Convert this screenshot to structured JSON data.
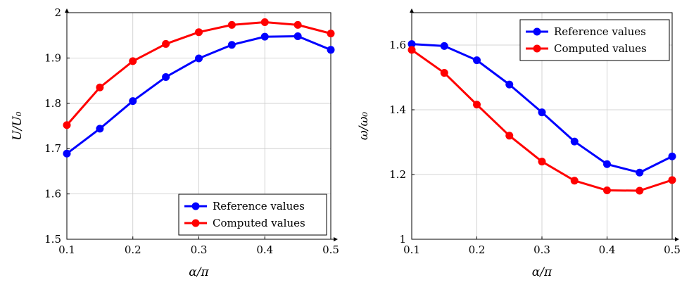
{
  "chart_data": [
    {
      "type": "line",
      "x": [
        0.1,
        0.15,
        0.2,
        0.25,
        0.3,
        0.35,
        0.4,
        0.45,
        0.5
      ],
      "series": [
        {
          "name": "Reference values",
          "color": "#0000ff",
          "values": [
            1.689,
            1.744,
            1.805,
            1.858,
            1.899,
            1.929,
            1.947,
            1.948,
            1.918
          ]
        },
        {
          "name": "Computed values",
          "color": "#ff0000",
          "values": [
            1.752,
            1.835,
            1.893,
            1.931,
            1.957,
            1.973,
            1.979,
            1.973,
            1.954
          ]
        }
      ],
      "xlabel": "α/π",
      "ylabel": "U/U₀",
      "xlim": [
        0.1,
        0.5
      ],
      "ylim": [
        1.5,
        2.0
      ],
      "xticks": [
        "0.1",
        "0.2",
        "0.3",
        "0.4",
        "0.5"
      ],
      "yticks": [
        "1.5",
        "1.6",
        "1.7",
        "1.8",
        "1.9",
        "2"
      ],
      "legend_position": "bottom-right",
      "grid": true
    },
    {
      "type": "line",
      "x": [
        0.1,
        0.15,
        0.2,
        0.25,
        0.3,
        0.35,
        0.4,
        0.45,
        0.5
      ],
      "series": [
        {
          "name": "Reference values",
          "color": "#0000ff",
          "values": [
            1.603,
            1.597,
            1.553,
            1.478,
            1.392,
            1.302,
            1.232,
            1.206,
            1.256
          ]
        },
        {
          "name": "Computed values",
          "color": "#ff0000",
          "values": [
            1.585,
            1.514,
            1.416,
            1.32,
            1.24,
            1.181,
            1.151,
            1.15,
            1.183
          ]
        }
      ],
      "xlabel": "α/π",
      "ylabel": "ω/ω₀",
      "xlim": [
        0.1,
        0.5
      ],
      "ylim": [
        1.0,
        1.7
      ],
      "xticks": [
        "0.1",
        "0.2",
        "0.3",
        "0.4",
        "0.5"
      ],
      "yticks": [
        "1",
        "1.2",
        "1.4",
        "1.6"
      ],
      "legend_position": "top-right",
      "grid": true
    }
  ]
}
